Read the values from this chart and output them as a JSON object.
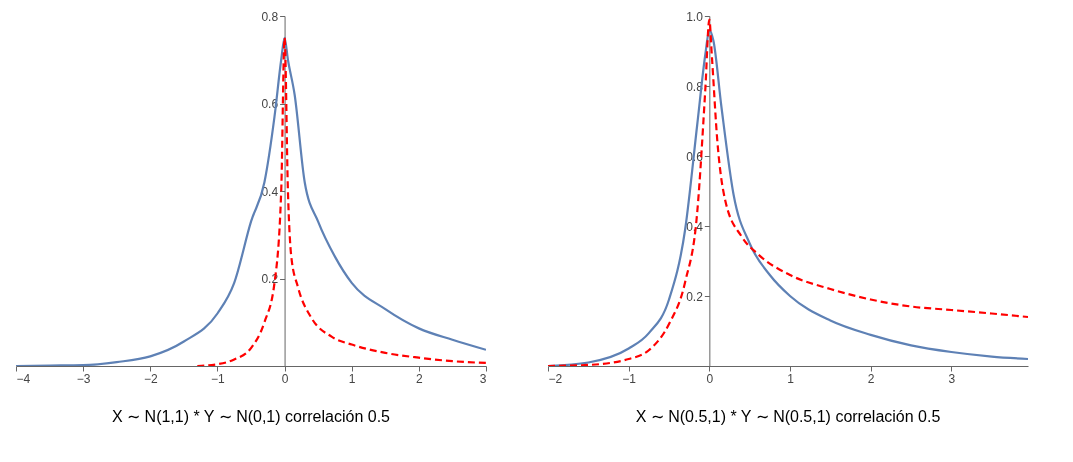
{
  "chart_data": [
    {
      "type": "line",
      "title": "X ∼  N(1,1) * Y ∼  N(0,1) correlación 0.5",
      "xlim": [
        -4,
        3
      ],
      "ylim": [
        0,
        0.8
      ],
      "xticks": [
        -4,
        -3,
        -2,
        -1,
        0,
        1,
        2,
        3
      ],
      "yticks": [
        0.2,
        0.4,
        0.6,
        0.8
      ],
      "grid": false,
      "series": [
        {
          "color": "#5e81b5",
          "line_style": "solid",
          "x": [
            -4,
            -3.5,
            -3,
            -2.5,
            -2,
            -1.5,
            -1,
            -0.75,
            -0.5,
            -0.3,
            -0.15,
            -0.05,
            0,
            0.05,
            0.15,
            0.3,
            0.5,
            0.75,
            1,
            1.5,
            2,
            2.5,
            3
          ],
          "values": [
            0,
            0.001,
            0.002,
            0.009,
            0.022,
            0.056,
            0.12,
            0.19,
            0.33,
            0.42,
            0.57,
            0.7,
            0.75,
            0.7,
            0.62,
            0.42,
            0.33,
            0.25,
            0.19,
            0.13,
            0.086,
            0.06,
            0.037
          ]
        },
        {
          "color": "#ff0000",
          "line_style": "dashed",
          "x": [
            -1.3,
            -1,
            -0.75,
            -0.5,
            -0.3,
            -0.15,
            -0.05,
            0,
            0.05,
            0.1,
            0.2,
            0.4,
            0.7,
            1,
            1.5,
            2,
            2.5,
            3
          ],
          "values": [
            0,
            0.004,
            0.015,
            0.041,
            0.1,
            0.19,
            0.4,
            0.75,
            0.4,
            0.25,
            0.18,
            0.11,
            0.067,
            0.049,
            0.03,
            0.019,
            0.011,
            0.007
          ]
        }
      ]
    },
    {
      "type": "line",
      "title": "X ∼  N(0.5,1) * Y ∼  N(0.5,1) correlación 0.5",
      "xlim": [
        -2,
        3.95
      ],
      "ylim": [
        0,
        1.0
      ],
      "xticks": [
        -2,
        -1,
        0,
        1,
        2,
        3
      ],
      "yticks": [
        0.2,
        0.4,
        0.6,
        0.8,
        {
          "value": 1.0,
          "label": "1.0"
        }
      ],
      "grid": false,
      "series": [
        {
          "color": "#5e81b5",
          "line_style": "solid",
          "x": [
            -2,
            -1.5,
            -1,
            -0.75,
            -0.5,
            -0.3,
            -0.15,
            -0.05,
            0,
            0.05,
            0.15,
            0.3,
            0.5,
            0.75,
            1,
            1.5,
            2,
            2.5,
            3,
            3.5,
            3.95
          ],
          "values": [
            0,
            0.01,
            0.05,
            0.094,
            0.19,
            0.39,
            0.69,
            0.89,
            0.96,
            0.93,
            0.74,
            0.49,
            0.35,
            0.26,
            0.2,
            0.13,
            0.089,
            0.059,
            0.04,
            0.027,
            0.02
          ]
        },
        {
          "color": "#ff0000",
          "line_style": "dashed",
          "x": [
            -2,
            -1.5,
            -1,
            -0.75,
            -0.5,
            -0.3,
            -0.15,
            -0.05,
            0,
            0.03,
            0.1,
            0.2,
            0.4,
            0.6,
            1,
            1.5,
            2,
            2.5,
            3,
            3.5,
            3.95
          ],
          "values": [
            0,
            0.003,
            0.02,
            0.045,
            0.12,
            0.24,
            0.44,
            0.79,
            0.99,
            0.89,
            0.64,
            0.47,
            0.37,
            0.32,
            0.26,
            0.22,
            0.19,
            0.17,
            0.16,
            0.15,
            0.14
          ]
        }
      ]
    }
  ]
}
